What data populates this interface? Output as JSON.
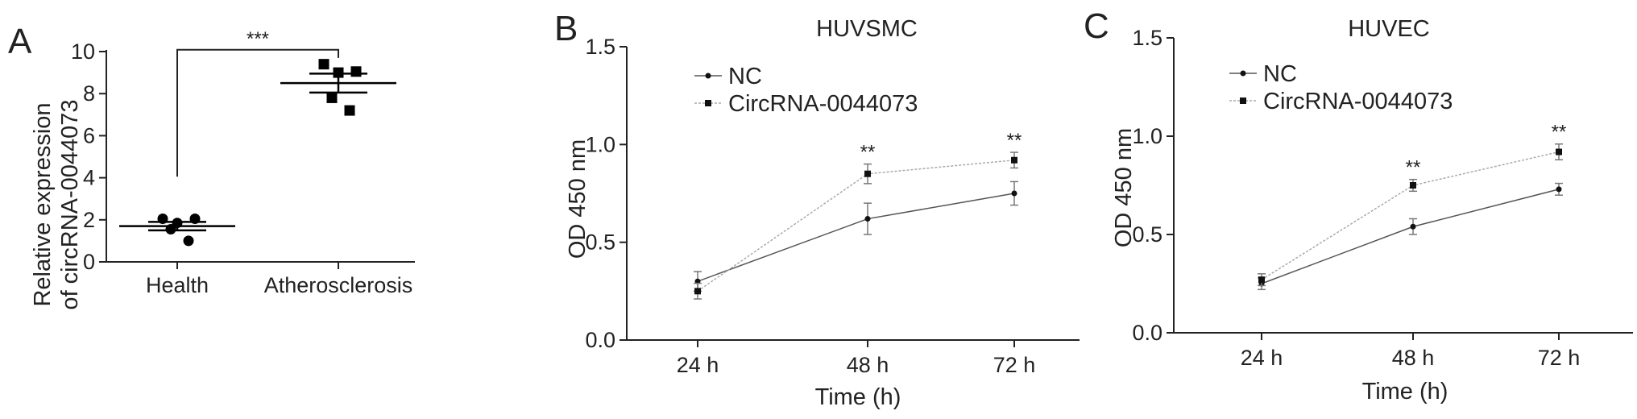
{
  "chart_data": [
    {
      "panel": "A",
      "type": "scatter",
      "title": "",
      "xlabel": "",
      "ylabel": [
        "Relative expression",
        "of circRNA-0044073"
      ],
      "categories": [
        "Health",
        "Atherosclerosis"
      ],
      "ylim": [
        0,
        10
      ],
      "yticks": [
        0,
        2,
        4,
        6,
        8,
        10
      ],
      "series": [
        {
          "category": "Health",
          "marker": "circle",
          "values": [
            2.05,
            2.05,
            1.85,
            1.55,
            1.0
          ],
          "mean": 1.7,
          "sem": 0.2
        },
        {
          "category": "Atherosclerosis",
          "marker": "square",
          "values": [
            9.4,
            9.05,
            9.0,
            7.8,
            7.2
          ],
          "mean": 8.5,
          "sem": 0.45
        }
      ],
      "significance": {
        "label": "***",
        "from": "Health",
        "to": "Atherosclerosis",
        "y": 10.2
      }
    },
    {
      "panel": "B",
      "type": "line",
      "title": "HUVSMC",
      "xlabel": "Time (h)",
      "ylabel": "OD 450 nm",
      "categories": [
        "24 h",
        "48 h",
        "72 h"
      ],
      "ylim": [
        0,
        1.5
      ],
      "yticks": [
        "0.0",
        "0.5",
        "1.0",
        "1.5"
      ],
      "legend_position": "top-left",
      "series": [
        {
          "name": "NC",
          "values": [
            0.3,
            0.62,
            0.75
          ],
          "errors": [
            0.05,
            0.08,
            0.06
          ],
          "color": "#555555"
        },
        {
          "name": "CircRNA-0044073",
          "values": [
            0.25,
            0.85,
            0.92
          ],
          "errors": [
            0.04,
            0.05,
            0.04
          ],
          "color": "#aaaaaa"
        }
      ],
      "annotations": [
        {
          "label": "**",
          "category": "48 h",
          "y": 0.93
        },
        {
          "label": "**",
          "category": "72 h",
          "y": 0.99
        }
      ]
    },
    {
      "panel": "C",
      "type": "line",
      "title": "HUVEC",
      "xlabel": "Time (h)",
      "ylabel": "OD 450 nm",
      "categories": [
        "24 h",
        "48 h",
        "72 h"
      ],
      "ylim": [
        0,
        1.5
      ],
      "yticks": [
        "0.0",
        "0.5",
        "1.0",
        "1.5"
      ],
      "legend_position": "top-left",
      "series": [
        {
          "name": "NC",
          "values": [
            0.25,
            0.54,
            0.73
          ],
          "errors": [
            0.03,
            0.04,
            0.03
          ],
          "color": "#555555"
        },
        {
          "name": "CircRNA-0044073",
          "values": [
            0.27,
            0.75,
            0.92
          ],
          "errors": [
            0.03,
            0.03,
            0.04
          ],
          "color": "#aaaaaa"
        }
      ],
      "annotations": [
        {
          "label": "**",
          "category": "48 h",
          "y": 0.81
        },
        {
          "label": "**",
          "category": "72 h",
          "y": 0.99
        }
      ]
    }
  ]
}
